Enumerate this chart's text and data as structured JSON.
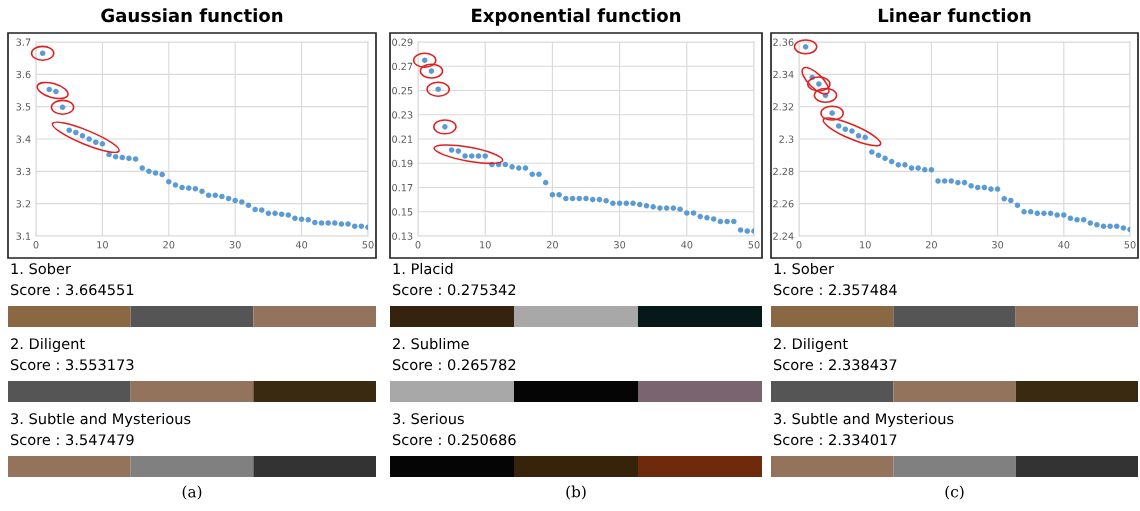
{
  "chart_data": [
    {
      "type": "scatter",
      "title": "Gaussian function",
      "marker": "circle",
      "grid": true,
      "x": [
        1,
        2,
        3,
        4,
        5,
        6,
        7,
        8,
        9,
        10,
        11,
        12,
        13,
        14,
        15,
        16,
        17,
        18,
        19,
        20,
        21,
        22,
        23,
        24,
        25,
        26,
        27,
        28,
        29,
        30,
        31,
        32,
        33,
        34,
        35,
        36,
        37,
        38,
        39,
        40,
        41,
        42,
        43,
        44,
        45,
        46,
        47,
        48,
        49,
        50
      ],
      "series": [
        {
          "color": "#5b9bd5",
          "values": [
            3.665,
            3.553,
            3.547,
            3.498,
            3.427,
            3.42,
            3.41,
            3.4,
            3.39,
            3.385,
            3.352,
            3.345,
            3.343,
            3.34,
            3.338,
            3.31,
            3.3,
            3.295,
            3.29,
            3.268,
            3.258,
            3.25,
            3.248,
            3.246,
            3.238,
            3.226,
            3.226,
            3.222,
            3.216,
            3.21,
            3.205,
            3.195,
            3.182,
            3.18,
            3.17,
            3.17,
            3.167,
            3.165,
            3.155,
            3.152,
            3.15,
            3.142,
            3.14,
            3.14,
            3.14,
            3.137,
            3.137,
            3.13,
            3.13,
            3.127
          ]
        }
      ],
      "xlim": [
        0,
        50
      ],
      "xticks": [
        0,
        10,
        20,
        30,
        40,
        50
      ],
      "ylim": [
        3.1,
        3.7
      ],
      "yticks": [
        3.1,
        3.2,
        3.3,
        3.4,
        3.5,
        3.6,
        3.7
      ]
    },
    {
      "type": "other",
      "annotations": [
        "1. Sober",
        "Score : 3.664551",
        "2. Diligent",
        "Score : 3.553173",
        "3. Subtle and Mysterious",
        "Score : 3.547479",
        "(a)"
      ],
      "colors": [
        "#8a6844",
        "#555555",
        "#94735c",
        "#555555",
        "#94735c",
        "#3a2a12",
        "#94735c",
        "#808080",
        "#333333"
      ]
    },
    {
      "type": "scatter",
      "title": "Exponential function",
      "marker": "circle",
      "grid": true,
      "x": [
        1,
        2,
        3,
        4,
        5,
        6,
        7,
        8,
        9,
        10,
        11,
        12,
        13,
        14,
        15,
        16,
        17,
        18,
        19,
        20,
        21,
        22,
        23,
        24,
        25,
        26,
        27,
        28,
        29,
        30,
        31,
        32,
        33,
        34,
        35,
        36,
        37,
        38,
        39,
        40,
        41,
        42,
        43,
        44,
        45,
        46,
        47,
        48,
        49,
        50
      ],
      "series": [
        {
          "color": "#5b9bd5",
          "values": [
            0.275,
            0.266,
            0.251,
            0.22,
            0.201,
            0.2,
            0.196,
            0.196,
            0.196,
            0.196,
            0.189,
            0.189,
            0.189,
            0.187,
            0.186,
            0.186,
            0.181,
            0.181,
            0.174,
            0.164,
            0.164,
            0.161,
            0.161,
            0.161,
            0.161,
            0.16,
            0.16,
            0.159,
            0.157,
            0.157,
            0.157,
            0.157,
            0.156,
            0.155,
            0.154,
            0.153,
            0.153,
            0.153,
            0.152,
            0.149,
            0.149,
            0.146,
            0.145,
            0.144,
            0.142,
            0.142,
            0.142,
            0.135,
            0.134,
            0.134
          ]
        }
      ],
      "xlim": [
        0,
        50
      ],
      "xticks": [
        0,
        10,
        20,
        30,
        40,
        50
      ],
      "ylim": [
        0.13,
        0.29
      ],
      "yticks": [
        0.13,
        0.15,
        0.17,
        0.19,
        0.21,
        0.23,
        0.25,
        0.27,
        0.29
      ]
    },
    {
      "type": "other",
      "annotations": [
        "1. Placid",
        "Score : 0.275342",
        "2. Sublime",
        "Score : 0.265782",
        "3. Serious",
        "Score : 0.250686",
        "(b)"
      ],
      "colors": [
        "#35230e",
        "#a8a8a8",
        "#061818",
        "#a8a8a8",
        "#050505",
        "#7a6470",
        "#050505",
        "#36230a",
        "#6e2a0a"
      ]
    },
    {
      "type": "scatter",
      "title": "Linear function",
      "marker": "circle",
      "grid": true,
      "x": [
        1,
        2,
        3,
        4,
        5,
        6,
        7,
        8,
        9,
        10,
        11,
        12,
        13,
        14,
        15,
        16,
        17,
        18,
        19,
        20,
        21,
        22,
        23,
        24,
        25,
        26,
        27,
        28,
        29,
        30,
        31,
        32,
        33,
        34,
        35,
        36,
        37,
        38,
        39,
        40,
        41,
        42,
        43,
        44,
        45,
        46,
        47,
        48,
        49,
        50
      ],
      "series": [
        {
          "color": "#5b9bd5",
          "values": [
            2.357,
            2.338,
            2.334,
            2.327,
            2.316,
            2.308,
            2.306,
            2.305,
            2.302,
            2.301,
            2.292,
            2.29,
            2.288,
            2.286,
            2.284,
            2.284,
            2.282,
            2.282,
            2.281,
            2.281,
            2.274,
            2.274,
            2.274,
            2.273,
            2.273,
            2.271,
            2.27,
            2.27,
            2.269,
            2.269,
            2.263,
            2.262,
            2.259,
            2.255,
            2.255,
            2.254,
            2.254,
            2.254,
            2.253,
            2.253,
            2.251,
            2.25,
            2.25,
            2.248,
            2.247,
            2.246,
            2.246,
            2.246,
            2.245,
            2.244
          ]
        }
      ],
      "xlim": [
        0,
        50
      ],
      "xticks": [
        0,
        10,
        20,
        30,
        40,
        50
      ],
      "ylim": [
        2.24,
        2.36
      ],
      "yticks": [
        2.24,
        2.26,
        2.28,
        2.3,
        2.32,
        2.34,
        2.36
      ]
    },
    {
      "type": "other",
      "annotations": [
        "1. Sober",
        "Score : 2.357484",
        "2. Diligent",
        "Score : 2.338437",
        "3. Subtle and Mysterious",
        "Score : 2.334017",
        "(c)"
      ],
      "colors": [
        "#8a6844",
        "#555555",
        "#94735c",
        "#555555",
        "#94735c",
        "#3a2a12",
        "#94735c",
        "#808080",
        "#333333"
      ]
    }
  ]
}
